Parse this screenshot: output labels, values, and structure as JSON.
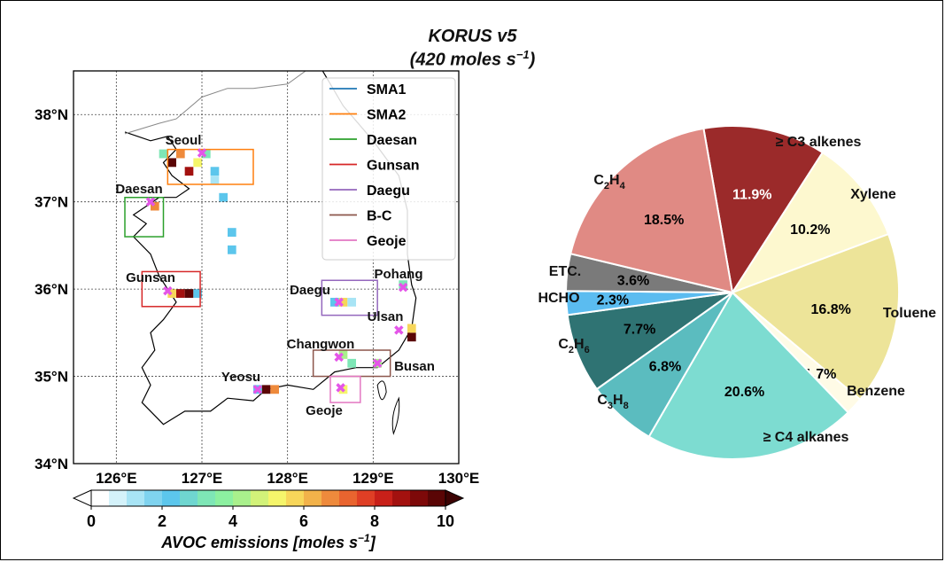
{
  "title_line1": "KORUS v5",
  "title_line2_prefix": "(420 moles s",
  "title_line2_sup": "−1",
  "title_line2_suffix": ")",
  "map": {
    "lat_ticks": [
      "38°N",
      "37°N",
      "36°N",
      "35°N",
      "34°N"
    ],
    "lon_ticks": [
      "126°E",
      "127°E",
      "128°E",
      "129°E",
      "130°E"
    ],
    "legend": [
      {
        "label": "SMA1",
        "color": "#1f77b4"
      },
      {
        "label": "SMA2",
        "color": "#ff7f0e"
      },
      {
        "label": "Daesan",
        "color": "#2ca02c"
      },
      {
        "label": "Gunsan",
        "color": "#d62728"
      },
      {
        "label": "Daegu",
        "color": "#9467bd"
      },
      {
        "label": "B-C",
        "color": "#8c564b"
      },
      {
        "label": "Geoje",
        "color": "#e377c2"
      }
    ],
    "regions": [
      {
        "name": "SMA2",
        "color": "#ff7f0e",
        "lon": [
          126.6,
          127.6
        ],
        "lat": [
          37.2,
          37.6
        ]
      },
      {
        "name": "Daesan",
        "color": "#2ca02c",
        "lon": [
          126.1,
          126.55
        ],
        "lat": [
          36.6,
          37.05
        ]
      },
      {
        "name": "Gunsan",
        "color": "#d62728",
        "lon": [
          126.3,
          126.98
        ],
        "lat": [
          35.8,
          36.2
        ]
      },
      {
        "name": "Daegu",
        "color": "#9467bd",
        "lon": [
          128.4,
          129.05
        ],
        "lat": [
          35.7,
          36.1
        ]
      },
      {
        "name": "B-C",
        "color": "#8c564b",
        "lon": [
          128.3,
          129.2
        ],
        "lat": [
          35.0,
          35.3
        ]
      },
      {
        "name": "Geoje",
        "color": "#e377c2",
        "lon": [
          128.5,
          128.85
        ],
        "lat": [
          34.7,
          35.0
        ]
      }
    ],
    "city_labels": [
      "Seoul",
      "Daesan",
      "Gunsan",
      "Daegu",
      "Pohang",
      "Ulsan",
      "Changwon",
      "Busan",
      "Yeosu",
      "Geoje"
    ],
    "cities": [
      {
        "name": "Seoul",
        "lon": 127.0,
        "lat": 37.56
      },
      {
        "name": "Daesan",
        "lon": 126.4,
        "lat": 37.0
      },
      {
        "name": "Gunsan",
        "lon": 126.6,
        "lat": 35.98
      },
      {
        "name": "Daegu",
        "lon": 128.6,
        "lat": 35.85
      },
      {
        "name": "Pohang",
        "lon": 129.35,
        "lat": 36.02
      },
      {
        "name": "Ulsan",
        "lon": 129.3,
        "lat": 35.53
      },
      {
        "name": "Changwon",
        "lon": 128.6,
        "lat": 35.22
      },
      {
        "name": "Busan",
        "lon": 129.05,
        "lat": 35.15
      },
      {
        "name": "Yeosu",
        "lon": 127.65,
        "lat": 34.85
      },
      {
        "name": "Geoje",
        "lon": 128.62,
        "lat": 34.87
      }
    ]
  },
  "colorbar": {
    "label_prefix": "AVOC emissions [moles s",
    "label_sup": "−1",
    "label_suffix": "]",
    "ticks": [
      "0",
      "2",
      "4",
      "6",
      "8",
      "10"
    ],
    "colors": [
      "#ffffff",
      "#d4f2fa",
      "#a8e4f5",
      "#7fd3ef",
      "#5cc6ec",
      "#6fd6d0",
      "#7ee6b6",
      "#8cf0a0",
      "#a9f08c",
      "#d2f279",
      "#f5f56b",
      "#f7d65a",
      "#f2b24a",
      "#ee8a3c",
      "#e9642f",
      "#df3f25",
      "#c82019",
      "#a3110f",
      "#7d0909",
      "#5a0505"
    ]
  },
  "chart_data": [
    {
      "type": "heatmap",
      "title": "KORUS v5 (420 moles s−1)",
      "xlabel": "",
      "ylabel": "",
      "x_range": [
        125.5,
        130.0
      ],
      "y_range": [
        34.0,
        38.5
      ],
      "colorbar_label": "AVOC emissions [moles s−1]",
      "colorbar_range": [
        0,
        10
      ],
      "cells_note": "",
      "cells": [
        {
          "lon": 126.65,
          "lat": 37.45,
          "value": 10
        },
        {
          "lon": 126.75,
          "lat": 37.55,
          "value": 7
        },
        {
          "lon": 126.85,
          "lat": 37.35,
          "value": 9
        },
        {
          "lon": 126.95,
          "lat": 37.45,
          "value": 5
        },
        {
          "lon": 127.05,
          "lat": 37.55,
          "value": 3
        },
        {
          "lon": 126.55,
          "lat": 37.55,
          "value": 3
        },
        {
          "lon": 127.15,
          "lat": 37.35,
          "value": 2
        },
        {
          "lon": 127.15,
          "lat": 37.25,
          "value": 1
        },
        {
          "lon": 127.25,
          "lat": 37.05,
          "value": 2
        },
        {
          "lon": 127.35,
          "lat": 36.65,
          "value": 2
        },
        {
          "lon": 127.35,
          "lat": 36.45,
          "value": 2
        },
        {
          "lon": 126.45,
          "lat": 36.95,
          "value": 7
        },
        {
          "lon": 126.75,
          "lat": 35.95,
          "value": 9
        },
        {
          "lon": 126.85,
          "lat": 35.95,
          "value": 10
        },
        {
          "lon": 126.65,
          "lat": 35.95,
          "value": 6
        },
        {
          "lon": 126.95,
          "lat": 35.95,
          "value": 2
        },
        {
          "lon": 128.65,
          "lat": 35.85,
          "value": 6
        },
        {
          "lon": 128.55,
          "lat": 35.85,
          "value": 2
        },
        {
          "lon": 128.75,
          "lat": 35.85,
          "value": 1
        },
        {
          "lon": 129.45,
          "lat": 35.45,
          "value": 10
        },
        {
          "lon": 129.45,
          "lat": 35.55,
          "value": 6
        },
        {
          "lon": 129.35,
          "lat": 36.05,
          "value": 3
        },
        {
          "lon": 128.65,
          "lat": 35.25,
          "value": 4
        },
        {
          "lon": 128.75,
          "lat": 35.15,
          "value": 3
        },
        {
          "lon": 129.05,
          "lat": 35.15,
          "value": 4
        },
        {
          "lon": 127.75,
          "lat": 34.85,
          "value": 10
        },
        {
          "lon": 127.85,
          "lat": 34.85,
          "value": 7
        },
        {
          "lon": 127.65,
          "lat": 34.85,
          "value": 2
        },
        {
          "lon": 128.65,
          "lat": 34.85,
          "value": 5
        }
      ]
    },
    {
      "type": "pie",
      "title": "KORUS v5 (420 moles s−1)",
      "slices": [
        {
          "label": "≥ C3 alkenes",
          "value": 11.9,
          "value_label": "11.9%",
          "color": "#9b2a2a",
          "text_color": "#ffffff"
        },
        {
          "label": "Xylene",
          "value": 10.2,
          "value_label": "10.2%",
          "color": "#fdf8cf",
          "text_color": "#000000"
        },
        {
          "label": "Toluene",
          "value": 16.8,
          "value_label": "16.8%",
          "color": "#ede499",
          "text_color": "#000000"
        },
        {
          "label": "Benzene",
          "value": 1.7,
          "value_label": "1.7%",
          "color": "#fffbe6",
          "text_color": "#000000"
        },
        {
          "label": "≥ C4 alkanes",
          "value": 20.6,
          "value_label": "20.6%",
          "color": "#7ddcd1",
          "text_color": "#000000"
        },
        {
          "label": "C3H8",
          "value": 6.8,
          "value_label": "6.8%",
          "color": "#5bbcbf",
          "text_color": "#000000"
        },
        {
          "label": "C2H6",
          "value": 7.7,
          "value_label": "7.7%",
          "color": "#2f7373",
          "text_color": "#000000"
        },
        {
          "label": "HCHO",
          "value": 2.3,
          "value_label": "2.3%",
          "color": "#5bbcf0",
          "text_color": "#000000"
        },
        {
          "label": "ETC.",
          "value": 3.6,
          "value_label": "3.6%",
          "color": "#7a7a7a",
          "text_color": "#000000"
        },
        {
          "label": "C2H4",
          "value": 18.5,
          "value_label": "18.5%",
          "color": "#e08a84",
          "text_color": "#000000"
        }
      ],
      "start_angle_deg": 0,
      "direction": "clockwise"
    }
  ]
}
